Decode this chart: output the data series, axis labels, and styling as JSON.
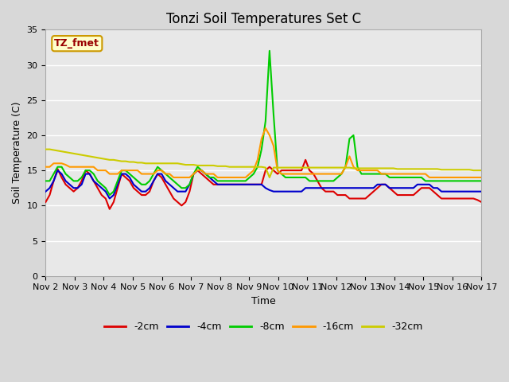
{
  "title": "Tonzi Soil Temperatures Set C",
  "xlabel": "Time",
  "ylabel": "Soil Temperature (C)",
  "xlim": [
    0,
    15
  ],
  "ylim": [
    0,
    35
  ],
  "yticks": [
    0,
    5,
    10,
    15,
    20,
    25,
    30,
    35
  ],
  "xtick_labels": [
    "Nov 2",
    "Nov 3",
    "Nov 4",
    "Nov 5",
    "Nov 6",
    "Nov 7",
    "Nov 8",
    "Nov 9",
    "Nov 10",
    "Nov 11",
    "Nov 12",
    "Nov 13",
    "Nov 14",
    "Nov 15",
    "Nov 16",
    "Nov 17"
  ],
  "annotation_label": "TZ_fmet",
  "annotation_box_facecolor": "#ffffcc",
  "annotation_box_edgecolor": "#cc9900",
  "annotation_text_color": "#990000",
  "series_colors": [
    "#dd0000",
    "#0000cc",
    "#00cc00",
    "#ff9900",
    "#cccc00"
  ],
  "series_labels": [
    "-2cm",
    "-4cm",
    "-8cm",
    "-16cm",
    "-32cm"
  ],
  "fig_facecolor": "#d8d8d8",
  "plot_facecolor": "#e8e8e8",
  "grid_color": "#ffffff",
  "title_fontsize": 12,
  "label_fontsize": 9,
  "tick_fontsize": 8,
  "linewidth": 1.5,
  "depth_2cm": [
    10.5,
    11.5,
    13.5,
    15.2,
    14.0,
    13.0,
    12.5,
    12.0,
    12.5,
    13.5,
    15.0,
    14.5,
    13.5,
    12.5,
    11.5,
    11.0,
    9.5,
    10.5,
    12.5,
    14.5,
    14.0,
    13.5,
    12.5,
    12.0,
    11.5,
    11.5,
    12.0,
    13.5,
    14.5,
    14.0,
    13.0,
    12.0,
    11.0,
    10.5,
    10.0,
    10.5,
    12.0,
    14.5,
    15.0,
    14.5,
    14.0,
    13.5,
    13.0,
    13.0,
    13.0,
    13.0,
    13.0,
    13.0,
    13.0,
    13.0,
    13.0,
    13.0,
    13.0,
    13.0,
    13.0,
    15.0,
    15.5,
    15.0,
    14.5,
    15.0,
    15.0,
    15.0,
    15.0,
    15.0,
    15.0,
    16.5,
    15.0,
    14.5,
    13.5,
    12.5,
    12.0,
    12.0,
    12.0,
    11.5,
    11.5,
    11.5,
    11.0,
    11.0,
    11.0,
    11.0,
    11.0,
    11.5,
    12.0,
    12.5,
    13.0,
    13.0,
    12.5,
    12.0,
    11.5,
    11.5,
    11.5,
    11.5,
    11.5,
    12.0,
    12.5,
    12.5,
    12.5,
    12.0,
    11.5,
    11.0,
    11.0,
    11.0,
    11.0,
    11.0,
    11.0,
    11.0,
    11.0,
    11.0,
    10.8,
    10.5
  ],
  "depth_4cm": [
    12.0,
    12.5,
    13.5,
    15.0,
    14.5,
    13.5,
    13.0,
    12.5,
    12.5,
    13.0,
    14.5,
    14.5,
    13.5,
    13.0,
    12.5,
    12.0,
    11.0,
    11.5,
    13.0,
    14.5,
    14.5,
    14.0,
    13.0,
    12.5,
    12.0,
    12.0,
    12.5,
    13.5,
    14.5,
    14.5,
    13.5,
    13.0,
    12.5,
    12.0,
    12.0,
    12.0,
    13.0,
    14.5,
    15.0,
    15.0,
    14.5,
    14.0,
    13.5,
    13.0,
    13.0,
    13.0,
    13.0,
    13.0,
    13.0,
    13.0,
    13.0,
    13.0,
    13.0,
    13.0,
    13.0,
    12.5,
    12.2,
    12.0,
    12.0,
    12.0,
    12.0,
    12.0,
    12.0,
    12.0,
    12.0,
    12.5,
    12.5,
    12.5,
    12.5,
    12.5,
    12.5,
    12.5,
    12.5,
    12.5,
    12.5,
    12.5,
    12.5,
    12.5,
    12.5,
    12.5,
    12.5,
    12.5,
    12.5,
    13.0,
    13.0,
    13.0,
    12.5,
    12.5,
    12.5,
    12.5,
    12.5,
    12.5,
    12.5,
    13.0,
    13.0,
    13.0,
    13.0,
    12.5,
    12.5,
    12.0,
    12.0,
    12.0,
    12.0,
    12.0,
    12.0,
    12.0,
    12.0,
    12.0,
    12.0,
    12.0
  ],
  "depth_8cm": [
    13.5,
    13.5,
    14.5,
    15.5,
    15.5,
    14.5,
    14.0,
    13.5,
    13.5,
    14.0,
    15.0,
    15.0,
    14.5,
    13.5,
    13.0,
    12.5,
    11.5,
    12.0,
    13.5,
    15.0,
    15.0,
    14.5,
    14.0,
    13.5,
    13.0,
    13.0,
    13.5,
    14.5,
    15.5,
    15.0,
    14.5,
    14.0,
    13.5,
    13.0,
    12.5,
    12.5,
    13.0,
    14.5,
    15.5,
    15.0,
    14.5,
    14.0,
    14.0,
    13.5,
    13.5,
    13.5,
    13.5,
    13.5,
    13.5,
    13.5,
    13.5,
    14.0,
    14.5,
    15.5,
    18.0,
    22.0,
    32.0,
    23.0,
    15.0,
    14.5,
    14.0,
    14.0,
    14.0,
    14.0,
    14.0,
    14.0,
    13.5,
    13.5,
    13.5,
    13.5,
    13.5,
    13.5,
    13.5,
    14.0,
    14.5,
    15.5,
    19.5,
    20.0,
    15.5,
    14.5,
    14.5,
    14.5,
    14.5,
    14.5,
    14.5,
    14.5,
    14.0,
    14.0,
    14.0,
    14.0,
    14.0,
    14.0,
    14.0,
    14.0,
    14.0,
    13.5,
    13.5,
    13.5,
    13.5,
    13.5,
    13.5,
    13.5,
    13.5,
    13.5,
    13.5,
    13.5,
    13.5,
    13.5,
    13.5,
    13.5
  ],
  "depth_16cm": [
    15.5,
    15.5,
    16.0,
    16.0,
    16.0,
    15.8,
    15.5,
    15.5,
    15.5,
    15.5,
    15.5,
    15.5,
    15.5,
    15.0,
    15.0,
    15.0,
    14.5,
    14.5,
    14.5,
    15.0,
    15.0,
    15.0,
    15.0,
    15.0,
    14.5,
    14.5,
    14.5,
    14.5,
    15.0,
    15.0,
    14.5,
    14.5,
    14.0,
    14.0,
    14.0,
    14.0,
    14.0,
    14.5,
    15.0,
    15.0,
    14.5,
    14.5,
    14.5,
    14.0,
    14.0,
    14.0,
    14.0,
    14.0,
    14.0,
    14.0,
    14.0,
    14.5,
    15.0,
    16.5,
    19.5,
    21.0,
    20.0,
    18.5,
    15.0,
    14.5,
    14.5,
    14.5,
    14.5,
    14.5,
    14.5,
    14.5,
    14.5,
    14.5,
    14.5,
    14.5,
    14.5,
    14.5,
    14.5,
    14.5,
    14.5,
    15.5,
    17.0,
    15.5,
    15.0,
    15.0,
    15.0,
    15.0,
    15.0,
    15.0,
    14.5,
    14.5,
    14.5,
    14.5,
    14.5,
    14.5,
    14.5,
    14.5,
    14.5,
    14.5,
    14.5,
    14.5,
    14.0,
    14.0,
    14.0,
    14.0,
    14.0,
    14.0,
    14.0,
    14.0,
    14.0,
    14.0,
    14.0,
    14.0,
    14.0,
    14.0
  ],
  "depth_32cm": [
    18.0,
    18.0,
    17.9,
    17.8,
    17.7,
    17.6,
    17.5,
    17.4,
    17.3,
    17.2,
    17.1,
    17.0,
    16.9,
    16.8,
    16.7,
    16.6,
    16.5,
    16.5,
    16.4,
    16.3,
    16.3,
    16.2,
    16.2,
    16.1,
    16.1,
    16.0,
    16.0,
    16.0,
    16.0,
    16.0,
    16.0,
    16.0,
    16.0,
    16.0,
    15.9,
    15.8,
    15.8,
    15.8,
    15.7,
    15.7,
    15.7,
    15.7,
    15.7,
    15.6,
    15.6,
    15.6,
    15.5,
    15.5,
    15.5,
    15.5,
    15.5,
    15.5,
    15.5,
    15.5,
    15.5,
    15.4,
    14.0,
    15.4,
    15.4,
    15.4,
    15.4,
    15.4,
    15.4,
    15.4,
    15.4,
    15.4,
    15.4,
    15.4,
    15.4,
    15.4,
    15.4,
    15.4,
    15.4,
    15.4,
    15.4,
    15.4,
    15.4,
    15.3,
    15.3,
    15.3,
    15.3,
    15.3,
    15.3,
    15.3,
    15.3,
    15.3,
    15.3,
    15.3,
    15.2,
    15.2,
    15.2,
    15.2,
    15.2,
    15.2,
    15.2,
    15.2,
    15.2,
    15.2,
    15.2,
    15.1,
    15.1,
    15.1,
    15.1,
    15.1,
    15.1,
    15.1,
    15.1,
    15.0,
    15.0,
    15.0
  ]
}
